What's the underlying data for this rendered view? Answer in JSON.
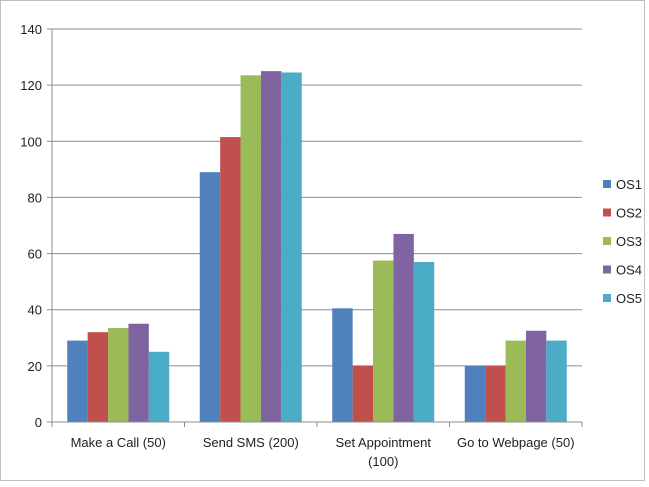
{
  "chart_data": {
    "type": "bar",
    "title": "",
    "xlabel": "",
    "ylabel": "",
    "ylim": [
      0,
      140
    ],
    "yticks": [
      0,
      20,
      40,
      60,
      80,
      100,
      120,
      140
    ],
    "grid": true,
    "legend_position": "right",
    "categories": [
      [
        "Make a Call (50)"
      ],
      [
        "Send SMS (200)"
      ],
      [
        "Set Appointment",
        "(100)"
      ],
      [
        "Go to Webpage (50)"
      ]
    ],
    "series": [
      {
        "name": "OS1",
        "color": "#4f81bd",
        "values": [
          29,
          89,
          40.5,
          20
        ]
      },
      {
        "name": "OS2",
        "color": "#c0504d",
        "values": [
          32,
          101.5,
          20,
          20
        ]
      },
      {
        "name": "OS3",
        "color": "#9bbb59",
        "values": [
          33.5,
          123.5,
          57.5,
          29
        ]
      },
      {
        "name": "OS4",
        "color": "#8064a2",
        "values": [
          35,
          125,
          67,
          32.5
        ]
      },
      {
        "name": "OS5",
        "color": "#4bacc6",
        "values": [
          25,
          124.5,
          57,
          29
        ]
      }
    ]
  }
}
